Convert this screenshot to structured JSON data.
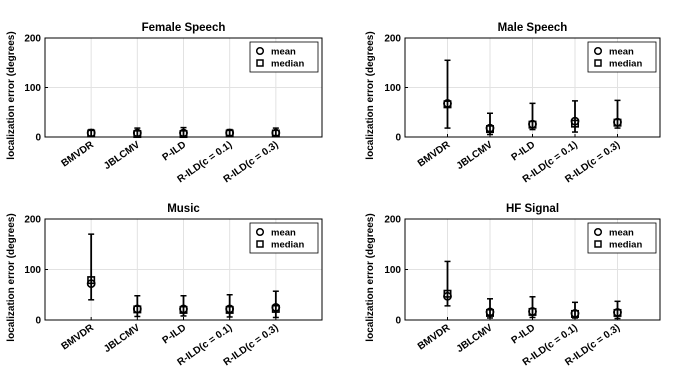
{
  "chart_data": [
    {
      "type": "errorbar",
      "title": "Female Speech",
      "ylabel": "localization error (degrees)",
      "ylim": [
        0,
        200
      ],
      "yticks": [
        0,
        100,
        200
      ],
      "grid": true,
      "legend": {
        "position": "top-right",
        "entries": [
          "mean",
          "median"
        ]
      },
      "categories": [
        "BMVDR",
        "JBLCMV",
        "P-ILD",
        "R-ILD(c = 0.1)",
        "R-ILD(c = 0.3)"
      ],
      "mean": [
        8,
        8,
        8,
        8,
        8
      ],
      "median": [
        7,
        6,
        6,
        7,
        7
      ],
      "lower": [
        2,
        2,
        2,
        3,
        3
      ],
      "upper": [
        15,
        18,
        19,
        15,
        18
      ]
    },
    {
      "type": "errorbar",
      "title": "Male Speech",
      "ylabel": "localization error (degrees)",
      "ylim": [
        0,
        200
      ],
      "yticks": [
        0,
        100,
        200
      ],
      "grid": true,
      "legend": {
        "position": "top-right",
        "entries": [
          "mean",
          "median"
        ]
      },
      "categories": [
        "BMVDR",
        "JBLCMV",
        "P-ILD",
        "R-ILD(c = 0.1)",
        "R-ILD(c = 0.3)"
      ],
      "mean": [
        68,
        18,
        26,
        32,
        30
      ],
      "median": [
        66,
        16,
        25,
        27,
        29
      ],
      "lower": [
        18,
        5,
        15,
        10,
        18
      ],
      "upper": [
        155,
        48,
        68,
        73,
        74
      ]
    },
    {
      "type": "errorbar",
      "title": "Music",
      "ylabel": "localization error (degrees)",
      "ylim": [
        0,
        200
      ],
      "yticks": [
        0,
        100,
        200
      ],
      "grid": true,
      "legend": {
        "position": "top-right",
        "entries": [
          "mean",
          "median"
        ]
      },
      "categories": [
        "BMVDR",
        "JBLCMV",
        "P-ILD",
        "R-ILD(c = 0.1)",
        "R-ILD(c = 0.3)"
      ],
      "mean": [
        72,
        22,
        22,
        22,
        25
      ],
      "median": [
        79,
        21,
        20,
        20,
        22
      ],
      "lower": [
        40,
        7,
        8,
        6,
        5
      ],
      "upper": [
        170,
        48,
        48,
        50,
        57
      ]
    },
    {
      "type": "errorbar",
      "title": "HF Signal",
      "ylabel": "localization error (degrees)",
      "ylim": [
        0,
        200
      ],
      "yticks": [
        0,
        100,
        200
      ],
      "grid": true,
      "legend": {
        "position": "top-right",
        "entries": [
          "mean",
          "median"
        ]
      },
      "categories": [
        "BMVDR",
        "JBLCMV",
        "P-ILD",
        "R-ILD(c = 0.1)",
        "R-ILD(c = 0.3)"
      ],
      "mean": [
        47,
        16,
        17,
        13,
        15
      ],
      "median": [
        52,
        14,
        16,
        12,
        14
      ],
      "lower": [
        28,
        4,
        5,
        4,
        3
      ],
      "upper": [
        116,
        42,
        46,
        35,
        37
      ]
    }
  ]
}
